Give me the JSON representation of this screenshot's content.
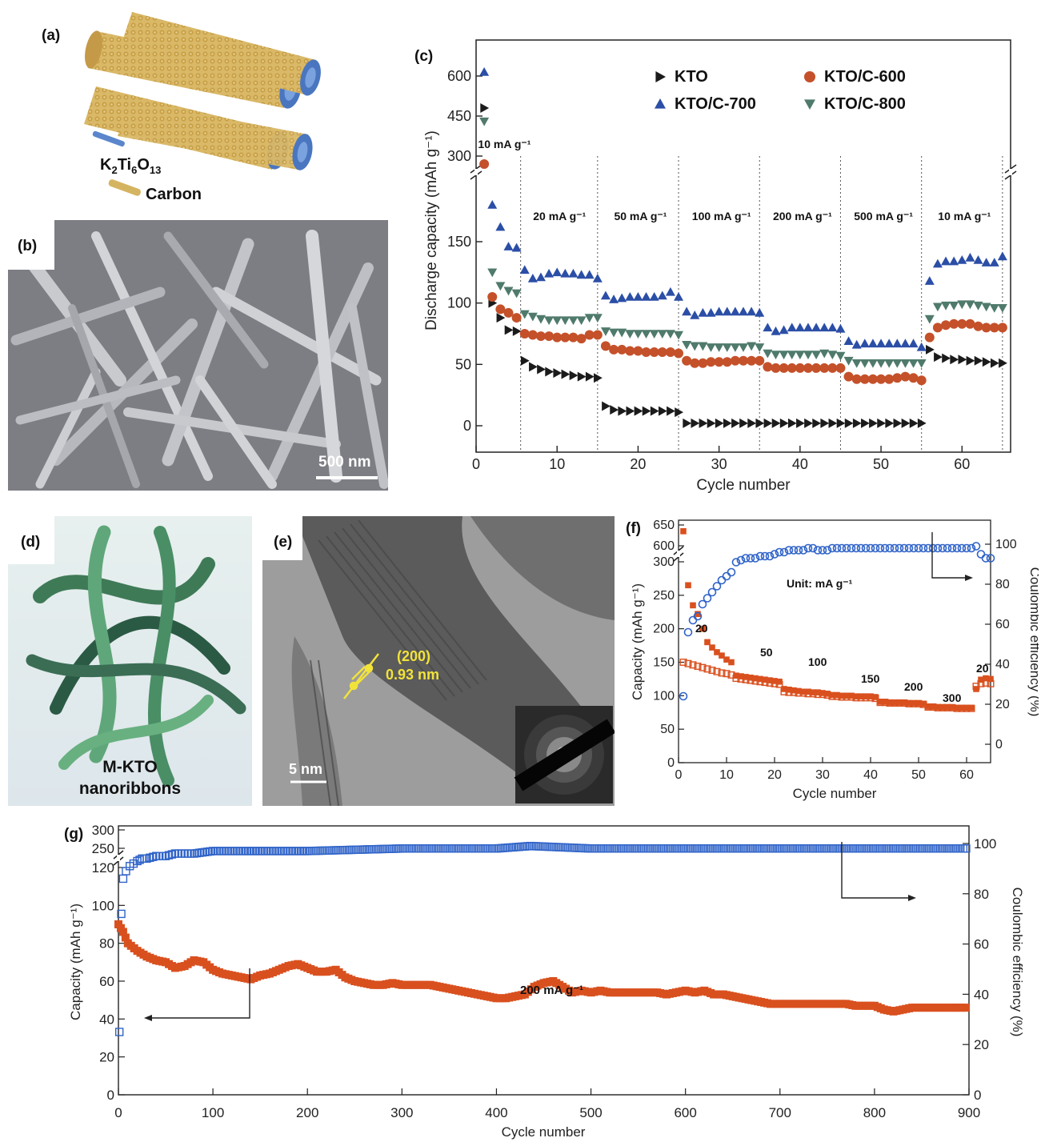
{
  "panels": {
    "a": {
      "label": "(a)",
      "legend": [
        "K₂Ti₆O₁₃",
        "Carbon"
      ]
    },
    "b": {
      "label": "(b)",
      "scale": "500 nm"
    },
    "d": {
      "label": "(d)",
      "caption1": "M-KTO",
      "caption2": "nanoribbons"
    },
    "e": {
      "label": "(e)",
      "lattice_plane": "(200)",
      "lattice_spacing": "0.93 nm",
      "scale": "5 nm"
    }
  },
  "colors": {
    "kto": "#1b1b1b",
    "c600": "#c4512a",
    "c700": "#2b4ea6",
    "c800": "#4f7a6c",
    "orange": "#d9501f",
    "blue": "#2f63c8"
  },
  "chart_data": [
    {
      "id": "c",
      "label": "(c)",
      "type": "scatter",
      "xlabel": "Cycle number",
      "ylabel": "Discharge capacity (mAh g⁻¹)",
      "xlim": [
        0,
        66
      ],
      "xticks": [
        0,
        10,
        20,
        30,
        40,
        50,
        60
      ],
      "yticks_lower": [
        0,
        50,
        100,
        150
      ],
      "yticks_upper": [
        300,
        450,
        600
      ],
      "axis_break": [
        180,
        260
      ],
      "rate_labels": [
        "10 mA g⁻¹",
        "20 mA g⁻¹",
        "50 mA g⁻¹",
        "100 mA g⁻¹",
        "200 mA g⁻¹",
        "500 mA g⁻¹",
        "10 mA g⁻¹"
      ],
      "rate_boundaries": [
        5.5,
        15,
        25,
        35,
        45,
        55,
        65
      ],
      "legend_position": "top-right",
      "series": [
        {
          "name": "KTO",
          "marker": "triangle-right",
          "color": "#1b1b1b",
          "values": [
            480,
            100,
            88,
            78,
            77,
            53,
            48,
            46,
            44,
            43,
            42,
            41,
            40,
            40,
            39,
            16,
            13,
            12,
            12,
            12,
            12,
            12,
            12,
            12,
            11,
            2,
            2,
            2,
            2,
            2,
            2,
            2,
            2,
            2,
            2,
            2,
            2,
            2,
            2,
            2,
            2,
            2,
            2,
            2,
            2,
            2,
            2,
            2,
            2,
            2,
            2,
            2,
            2,
            2,
            2,
            62,
            56,
            55,
            54,
            54,
            53,
            53,
            52,
            51,
            51
          ]
        },
        {
          "name": "KTO/C-600",
          "marker": "circle",
          "color": "#c4512a",
          "values": [
            270,
            105,
            95,
            92,
            88,
            75,
            74,
            73,
            73,
            72,
            72,
            72,
            71,
            74,
            74,
            65,
            62,
            62,
            61,
            61,
            60,
            60,
            60,
            60,
            59,
            53,
            51,
            51,
            52,
            52,
            52,
            53,
            53,
            53,
            53,
            48,
            47,
            47,
            47,
            47,
            47,
            47,
            47,
            47,
            47,
            40,
            38,
            38,
            38,
            38,
            38,
            39,
            40,
            39,
            37,
            72,
            80,
            82,
            83,
            83,
            83,
            81,
            80,
            80,
            80
          ]
        },
        {
          "name": "KTO/C-700",
          "marker": "triangle-up",
          "color": "#2b4ea6",
          "values": [
            615,
            180,
            162,
            146,
            145,
            127,
            120,
            121,
            124,
            125,
            124,
            124,
            123,
            123,
            120,
            106,
            103,
            104,
            105,
            105,
            105,
            105,
            106,
            109,
            105,
            93,
            90,
            92,
            92,
            93,
            93,
            93,
            93,
            93,
            92,
            80,
            77,
            78,
            80,
            80,
            80,
            80,
            80,
            80,
            79,
            69,
            66,
            67,
            67,
            67,
            67,
            67,
            67,
            67,
            64,
            118,
            132,
            134,
            134,
            135,
            137,
            135,
            133,
            133,
            138
          ]
        },
        {
          "name": "KTO/C-800",
          "marker": "triangle-down",
          "color": "#4f7a6c",
          "values": [
            430,
            125,
            114,
            110,
            108,
            91,
            89,
            87,
            86,
            86,
            86,
            86,
            86,
            88,
            88,
            77,
            76,
            76,
            75,
            75,
            75,
            75,
            75,
            75,
            74,
            66,
            65,
            65,
            64,
            64,
            64,
            64,
            64,
            65,
            64,
            59,
            58,
            58,
            58,
            58,
            58,
            58,
            59,
            58,
            57,
            53,
            51,
            51,
            51,
            51,
            51,
            51,
            51,
            51,
            51,
            87,
            97,
            98,
            98,
            99,
            99,
            98,
            97,
            96,
            96
          ]
        }
      ]
    },
    {
      "id": "f",
      "label": "(f)",
      "type": "scatter",
      "xlabel": "Cycle number",
      "ylabel": "Capacity (mAh g⁻¹)",
      "y2label": "Coulombic efficiency (%)",
      "xlim": [
        0,
        65
      ],
      "xticks": [
        0,
        10,
        20,
        30,
        40,
        50,
        60
      ],
      "yticks_lower": [
        0,
        50,
        100,
        150,
        200,
        250,
        300
      ],
      "yticks_upper": [
        600,
        650
      ],
      "y2ticks": [
        0,
        20,
        40,
        60,
        80,
        100
      ],
      "annotation": "Unit: mA g⁻¹",
      "rate_labels": [
        {
          "text": "20",
          "cycle": 3.5
        },
        {
          "text": "50",
          "cycle": 17
        },
        {
          "text": "100",
          "cycle": 27
        },
        {
          "text": "150",
          "cycle": 38
        },
        {
          "text": "200",
          "cycle": 47
        },
        {
          "text": "300",
          "cycle": 55
        },
        {
          "text": "20",
          "cycle": 62
        }
      ],
      "series": [
        {
          "name": "discharge",
          "marker": "square-filled",
          "color": "#d9501f",
          "values": [
            635,
            265,
            235,
            222,
            200,
            180,
            172,
            165,
            160,
            154,
            150,
            130,
            129,
            128,
            127,
            126,
            125,
            124,
            123,
            122,
            121,
            110,
            109,
            108,
            107,
            106,
            106,
            105,
            105,
            104,
            103,
            101,
            101,
            100,
            100,
            100,
            99,
            99,
            99,
            99,
            98,
            91,
            91,
            90,
            90,
            90,
            90,
            89,
            89,
            89,
            88,
            84,
            84,
            83,
            83,
            83,
            83,
            82,
            82,
            82,
            82,
            110,
            124,
            126,
            125
          ]
        },
        {
          "name": "charge",
          "marker": "square-open",
          "color": "#d9501f",
          "values": [
            150,
            148,
            146,
            144,
            142,
            140,
            138,
            136,
            134,
            133,
            131,
            126,
            125,
            124,
            123,
            122,
            121,
            120,
            119,
            118,
            117,
            106,
            105,
            105,
            104,
            104,
            103,
            103,
            102,
            102,
            101,
            99,
            99,
            98,
            98,
            98,
            97,
            97,
            97,
            97,
            96,
            90,
            90,
            89,
            89,
            89,
            89,
            88,
            88,
            88,
            87,
            83,
            83,
            82,
            82,
            82,
            82,
            81,
            81,
            81,
            81,
            114,
            118,
            119,
            118
          ]
        },
        {
          "name": "coulombic efficiency",
          "axis": "right",
          "marker": "circle-open",
          "color": "#2f63c8",
          "values": [
            24,
            56,
            62,
            64,
            70,
            73,
            76,
            79,
            82,
            84,
            86,
            91,
            92,
            93,
            93,
            93,
            94,
            94,
            94,
            95,
            96,
            96,
            97,
            97,
            97,
            97,
            98,
            98,
            97,
            97,
            97,
            98,
            98,
            98,
            98,
            98,
            98,
            98,
            98,
            98,
            98,
            98,
            98,
            98,
            98,
            98,
            98,
            98,
            98,
            98,
            98,
            98,
            98,
            98,
            98,
            98,
            98,
            98,
            98,
            98,
            98,
            99,
            95,
            93,
            93
          ]
        }
      ]
    },
    {
      "id": "g",
      "label": "(g)",
      "type": "scatter",
      "xlabel": "Cycle number",
      "ylabel": "Capacity (mAh g⁻¹)",
      "y2label": "Coulombic efficiency (%)",
      "xlim": [
        0,
        900
      ],
      "xticks": [
        0,
        100,
        200,
        300,
        400,
        500,
        600,
        700,
        800,
        900
      ],
      "yticks_lower": [
        0,
        20,
        40,
        60,
        80,
        100,
        120
      ],
      "yticks_upper": [
        250,
        300
      ],
      "y2ticks": [
        0,
        20,
        40,
        60,
        80,
        100
      ],
      "annotation": "200 mA g⁻¹",
      "capacity_series": {
        "name": "capacity",
        "color": "#d9501f",
        "x": [
          0,
          5,
          10,
          20,
          30,
          40,
          50,
          60,
          70,
          80,
          90,
          100,
          110,
          120,
          130,
          140,
          150,
          160,
          170,
          180,
          190,
          200,
          210,
          220,
          230,
          240,
          250,
          260,
          270,
          280,
          290,
          300,
          310,
          320,
          330,
          340,
          350,
          360,
          370,
          380,
          390,
          400,
          410,
          420,
          430,
          440,
          450,
          460,
          470,
          480,
          490,
          500,
          510,
          520,
          530,
          540,
          550,
          560,
          570,
          580,
          590,
          600,
          610,
          620,
          630,
          640,
          650,
          660,
          670,
          680,
          690,
          700,
          710,
          720,
          730,
          740,
          750,
          760,
          770,
          780,
          790,
          800,
          810,
          820,
          830,
          840,
          850,
          860,
          870,
          880,
          890,
          900
        ],
        "values": [
          90,
          86,
          80,
          76,
          73,
          71,
          70,
          67,
          68,
          71,
          70,
          66,
          64,
          63,
          62,
          61,
          63,
          64,
          66,
          68,
          69,
          67,
          65,
          65,
          66,
          62,
          60,
          59,
          58,
          58,
          59,
          58,
          58,
          58,
          58,
          57,
          56,
          55,
          54,
          53,
          52,
          51,
          51,
          52,
          53,
          57,
          59,
          60,
          57,
          54,
          55,
          54,
          55,
          54,
          54,
          54,
          54,
          54,
          54,
          53,
          54,
          55,
          54,
          55,
          53,
          53,
          52,
          51,
          50,
          49,
          48,
          48,
          48,
          48,
          48,
          48,
          48,
          48,
          48,
          47,
          47,
          47,
          45,
          44,
          45,
          46,
          46,
          46,
          46,
          46,
          46,
          46
        ]
      },
      "efficiency_series": {
        "name": "coulombic efficiency",
        "axis": "right",
        "color": "#2f63c8",
        "x": [
          1,
          3,
          5,
          8,
          12,
          16,
          20,
          25,
          30,
          40,
          50,
          60,
          70,
          80,
          100,
          150,
          200,
          300,
          400,
          436,
          500,
          600,
          700,
          800,
          900
        ],
        "values": [
          25,
          72,
          86,
          89,
          91,
          92,
          93,
          94,
          94,
          95,
          95,
          96,
          96,
          96,
          97,
          97,
          97,
          98,
          98,
          99,
          98,
          98,
          98,
          98,
          98
        ]
      }
    }
  ]
}
